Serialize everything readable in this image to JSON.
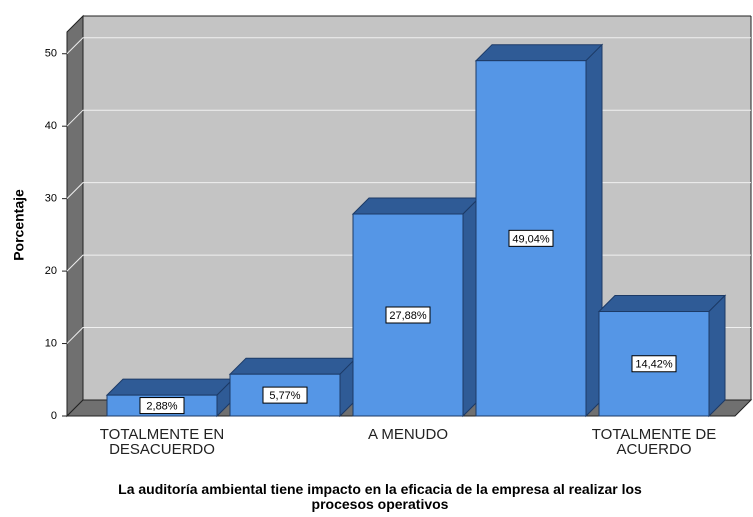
{
  "chart_data": {
    "type": "bar",
    "x_label": "La auditoría ambiental tiene  impacto en la eficacia de la empresa al realizar los procesos operativos",
    "y_label": "Porcentaje",
    "categories": [
      "TOTALMENTE EN DESACUERDO",
      null,
      "A MENUDO",
      null,
      "TOTALMENTE DE ACUERDO"
    ],
    "values": [
      2.88,
      5.77,
      27.88,
      49.04,
      14.42
    ],
    "value_labels": [
      "2,88%",
      "5,77%",
      "27,88%",
      "49,04%",
      "14,42%"
    ],
    "color": "#5596e6",
    "ylim": [
      0,
      53
    ],
    "yticks": [
      0,
      10,
      20,
      30,
      40,
      50
    ],
    "grid": true
  }
}
